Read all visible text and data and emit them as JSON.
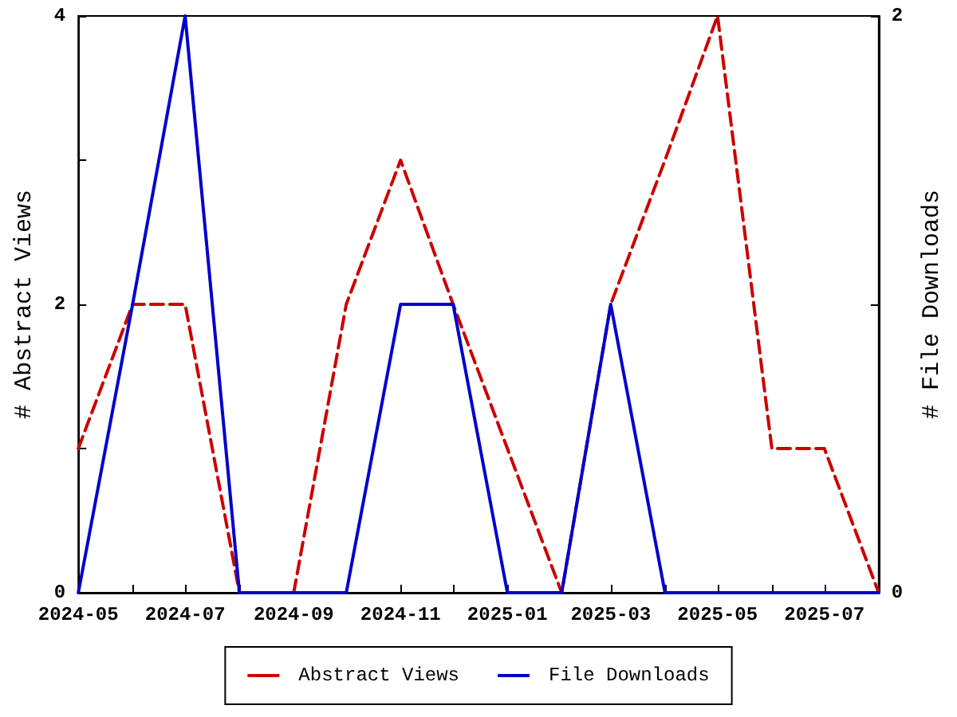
{
  "chart_data": {
    "type": "line",
    "ylabel": "# Abstract Views",
    "y2label": "# File Downloads",
    "x": [
      "2024-05",
      "2024-06",
      "2024-07",
      "2024-08",
      "2024-09",
      "2024-10",
      "2024-11",
      "2024-12",
      "2025-01",
      "2025-02",
      "2025-03",
      "2025-04",
      "2025-05",
      "2025-06",
      "2025-07",
      "2025-08"
    ],
    "series": [
      {
        "name": "Abstract Views",
        "color": "#cc0000",
        "line_style": "dashed",
        "values": [
          1,
          2,
          2,
          0,
          0,
          2,
          3,
          2,
          1,
          0,
          2,
          3,
          4,
          1,
          1,
          0
        ]
      },
      {
        "name": "File Downloads",
        "color": "#0000cc",
        "line_style": "solid",
        "axis": "y2",
        "values": [
          0,
          1,
          2,
          0,
          0,
          0,
          1,
          1,
          0,
          0,
          1,
          0,
          0,
          0,
          0,
          0
        ]
      }
    ],
    "xlim": [
      "2024-05",
      "2025-08"
    ],
    "xticks": [
      "2024-05",
      {
        "value": "2024-06",
        "label": null
      },
      "2024-07",
      {
        "value": "2024-08",
        "label": null
      },
      "2024-09",
      {
        "value": "2024-10",
        "label": null
      },
      "2024-11",
      {
        "value": "2024-12",
        "label": null
      },
      "2025-01",
      {
        "value": "2025-02",
        "label": null
      },
      "2025-03",
      {
        "value": "2025-04",
        "label": null
      },
      "2025-05",
      {
        "value": "2025-06",
        "label": null
      },
      "2025-07",
      {
        "value": "2025-08",
        "label": null
      }
    ],
    "ylim": [
      0,
      4
    ],
    "yticks": [
      0,
      {
        "value": 1,
        "label": null
      },
      2,
      {
        "value": 3,
        "label": null
      },
      4
    ],
    "y2lim": [
      0,
      2
    ],
    "y2ticks": [
      0,
      {
        "value": 1,
        "label": null
      },
      2
    ],
    "grid": false,
    "legend": "bottom",
    "marker": "none"
  }
}
